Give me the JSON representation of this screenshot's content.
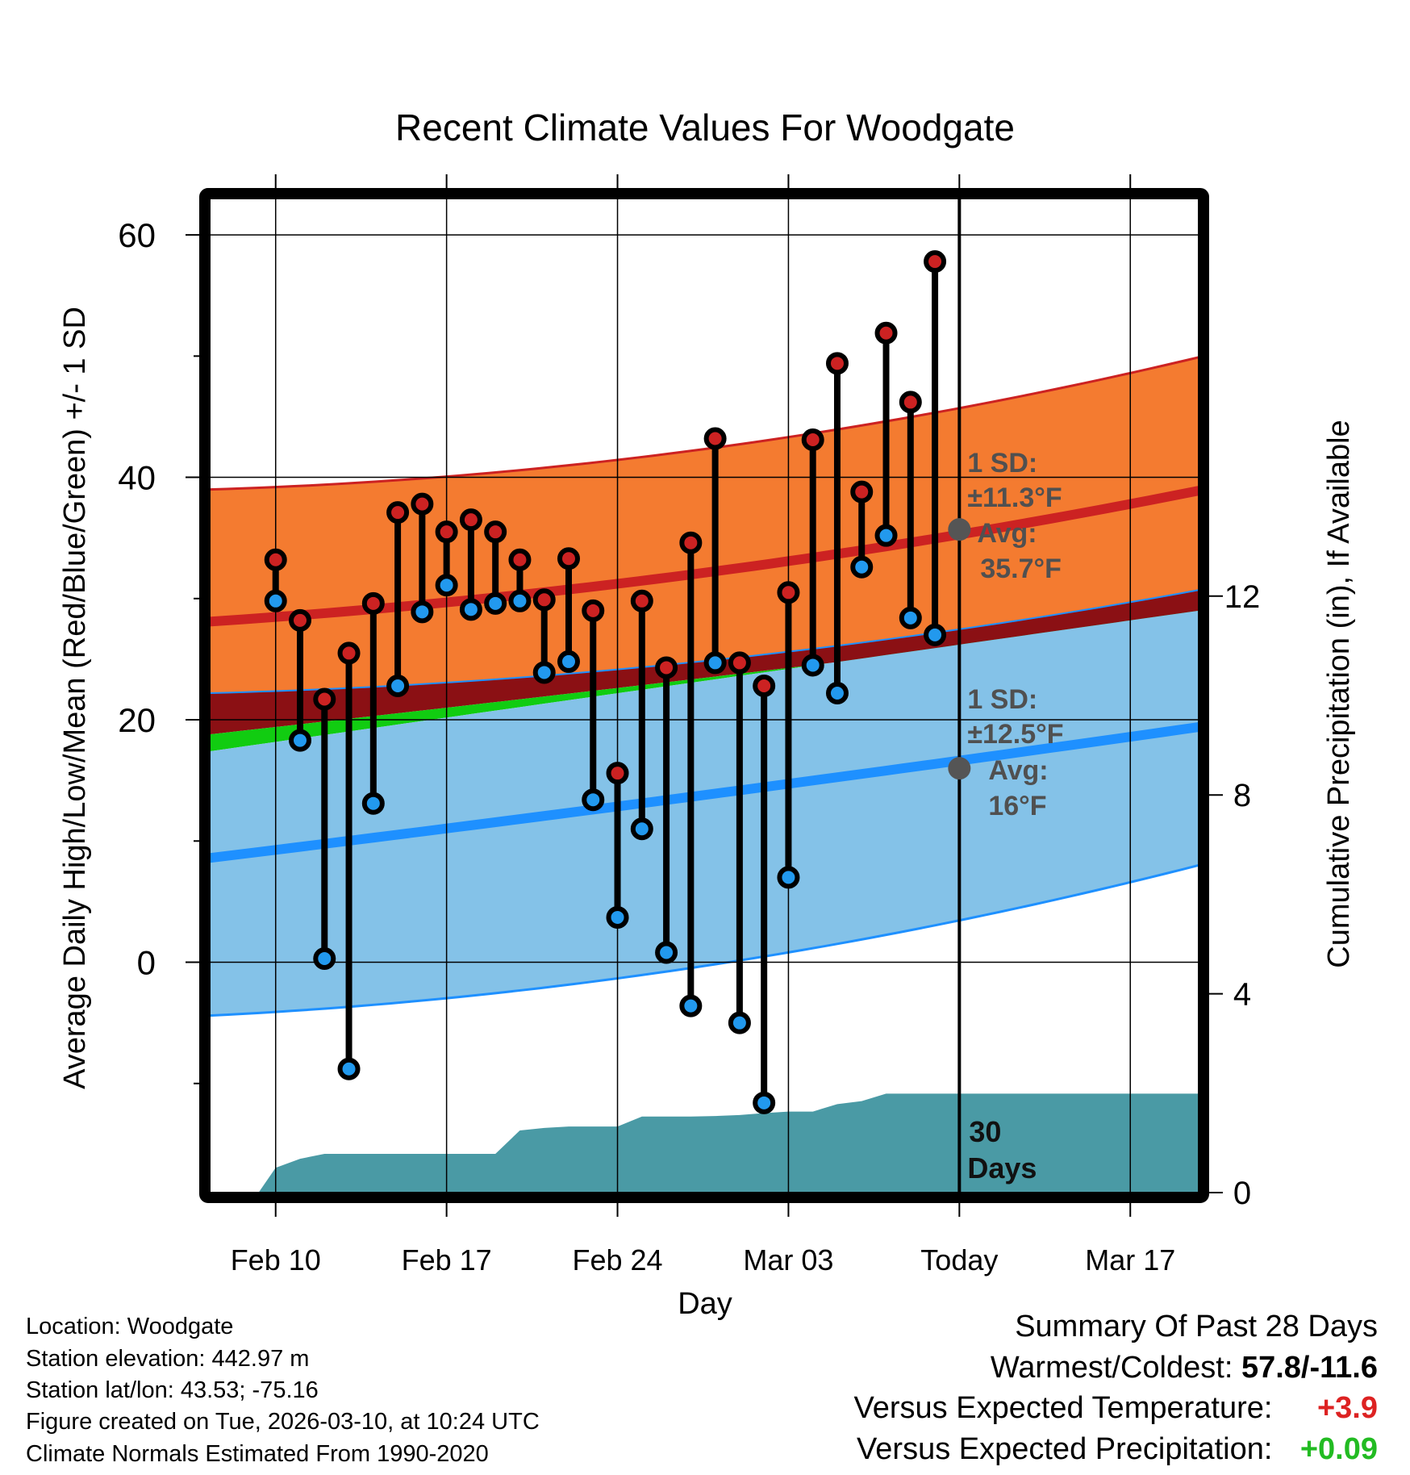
{
  "chart_data": {
    "type": "line",
    "title": "Recent Climate Values For Woodgate",
    "xlabel": "Day",
    "ylabel": "Average Daily High/Low/Mean (Red/Blue/Green) +/- 1 SD",
    "ylabel_right": "Cumulative Precipitation (in), If Available",
    "x_ticks": [
      {
        "day": 0,
        "label": "Feb 10"
      },
      {
        "day": 7,
        "label": "Feb 17"
      },
      {
        "day": 14,
        "label": "Feb 24"
      },
      {
        "day": 21,
        "label": "Mar 03"
      },
      {
        "day": 28,
        "label": "Today"
      },
      {
        "day": 35,
        "label": "Mar 17"
      }
    ],
    "xlim": [
      -2.7,
      37.8
    ],
    "ylim": [
      -19,
      63
    ],
    "y_ticks": [
      0,
      20,
      40,
      60
    ],
    "y_minor_ticks": [
      -10,
      10,
      30,
      50
    ],
    "y2lim": [
      0,
      20
    ],
    "y2_ticks": [
      0,
      4,
      8,
      12
    ],
    "days": [
      0,
      1,
      2,
      3,
      4,
      5,
      6,
      7,
      8,
      9,
      10,
      11,
      12,
      13,
      14,
      15,
      16,
      17,
      18,
      19,
      20,
      21,
      22,
      23,
      24,
      25,
      26,
      27
    ],
    "series": [
      {
        "name": "Observed High",
        "color": "#cc2222",
        "values": [
          33.2,
          28.2,
          21.7,
          25.5,
          29.6,
          37.1,
          37.8,
          35.5,
          36.5,
          35.5,
          33.2,
          29.9,
          33.3,
          29.0,
          15.6,
          29.8,
          24.3,
          34.6,
          43.2,
          24.7,
          22.8,
          30.5,
          43.1,
          49.4,
          38.8,
          51.9,
          46.2,
          57.8
        ]
      },
      {
        "name": "Observed Low",
        "color": "#2299ee",
        "values": [
          29.8,
          18.3,
          0.3,
          -8.8,
          13.1,
          22.8,
          28.9,
          31.1,
          29.1,
          29.6,
          29.8,
          23.9,
          24.8,
          13.4,
          3.7,
          11.0,
          0.8,
          -3.6,
          24.7,
          -5.0,
          -11.6,
          7.0,
          24.5,
          22.2,
          32.6,
          35.2,
          28.4,
          27.0
        ]
      },
      {
        "name": "Cumulative Precipitation",
        "color": "#4a9aa5",
        "values": [
          0.5,
          0.68,
          0.78,
          0.78,
          0.78,
          0.78,
          0.78,
          0.78,
          0.78,
          0.78,
          1.25,
          1.3,
          1.33,
          1.33,
          1.33,
          1.53,
          1.53,
          1.53,
          1.54,
          1.56,
          1.6,
          1.63,
          1.63,
          1.78,
          1.84,
          1.99,
          1.99,
          1.99
        ]
      }
    ],
    "normals": {
      "days": [
        -2.7,
        35.0,
        37.8
      ],
      "avg_high": [
        28.1,
        37.8,
        38.9
      ],
      "avg_low": [
        8.6,
        18.6,
        19.4
      ],
      "high_plus_sd": [
        39.0,
        48.6,
        49.9
      ],
      "high_minus_sd": [
        17.4,
        28.2,
        29.0
      ],
      "low_plus_sd": [
        22.2,
        29.7,
        30.7
      ],
      "low_minus_sd": [
        -4.4,
        6.6,
        8.0
      ],
      "mean_plus_sd": [
        18.8,
        27.7,
        28.4
      ]
    },
    "annotations": {
      "high_sd": "1 SD:",
      "high_sd_value": "±11.3°F",
      "high_avg_label": "Avg:",
      "high_avg_value": "35.7°F",
      "high_avg_point": 35.7,
      "low_sd": "1 SD:",
      "low_sd_value": "±12.5°F",
      "low_avg_label": "Avg:",
      "low_avg_value": "16°F",
      "low_avg_point": 16.0,
      "days_number": "30",
      "days_label": "Days"
    },
    "colors": {
      "high_band": "#f47b30",
      "overlap_band": "#8b1014",
      "low_band": "#84c2e8",
      "mean_band": "#11cc11",
      "high_line": "#cc2222",
      "low_line": "#1e90ff",
      "precip": "#4a9aa5"
    },
    "legend": "none"
  },
  "info": {
    "location": "Location: Woodgate",
    "elevation": "Station elevation: 442.97 m",
    "latlon": "Station lat/lon: 43.53; -75.16",
    "created": "Figure created on Tue, 2026-03-10, at 10:24 UTC",
    "normals": "Climate Normals Estimated From 1990-2020"
  },
  "summary": {
    "title": "Summary Of Past 28 Days",
    "warmest_label": "Warmest/Coldest:",
    "warmest_value": "57.8/-11.6",
    "temp_label": "Versus Expected Temperature:",
    "temp_value": "+3.9",
    "temp_color": "#dd2222",
    "precip_label": "Versus Expected Precipitation:",
    "precip_value": "+0.09",
    "precip_color": "#22bb22"
  }
}
